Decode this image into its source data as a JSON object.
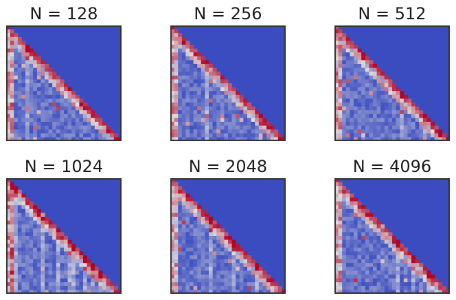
{
  "chart_data": [
    {
      "type": "heatmap",
      "title": "N = 128",
      "grid": false,
      "seed": 11,
      "colormap": "coolwarm",
      "masked_region": "upper-right triangle",
      "masked_color": "#3b4cc0",
      "rows": 30,
      "cols": 30
    },
    {
      "type": "heatmap",
      "title": "N = 256",
      "grid": false,
      "seed": 23,
      "colormap": "coolwarm",
      "masked_region": "upper-right triangle",
      "masked_color": "#3b4cc0",
      "rows": 30,
      "cols": 30
    },
    {
      "type": "heatmap",
      "title": "N = 512",
      "grid": false,
      "seed": 37,
      "colormap": "coolwarm",
      "masked_region": "upper-right triangle",
      "masked_color": "#3b4cc0",
      "rows": 30,
      "cols": 30
    },
    {
      "type": "heatmap",
      "title": "N = 1024",
      "grid": false,
      "seed": 41,
      "colormap": "coolwarm",
      "masked_region": "upper-right triangle",
      "masked_color": "#3b4cc0",
      "rows": 30,
      "cols": 30
    },
    {
      "type": "heatmap",
      "title": "N = 2048",
      "grid": false,
      "seed": 53,
      "colormap": "coolwarm",
      "masked_region": "upper-right triangle",
      "masked_color": "#3b4cc0",
      "rows": 30,
      "cols": 30
    },
    {
      "type": "heatmap",
      "title": "N = 4096",
      "grid": false,
      "seed": 67,
      "colormap": "coolwarm",
      "masked_region": "upper-right triangle",
      "masked_color": "#3b4cc0",
      "rows": 30,
      "cols": 30
    }
  ],
  "colors": {
    "background": "#ffffff",
    "frame": "#333333",
    "cold": "#3b4cc0",
    "neutral": "#dddddd",
    "hot": "#b40426"
  }
}
